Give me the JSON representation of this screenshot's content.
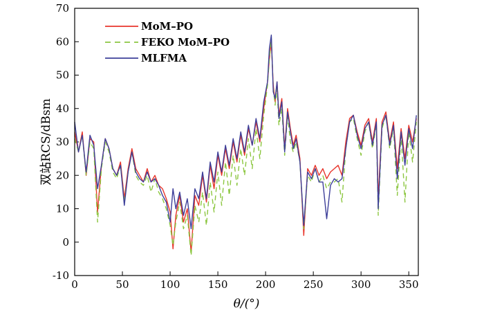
{
  "chart_data": {
    "type": "line",
    "title": "",
    "xlabel": "θ/(°)",
    "ylabel": "双站RCS/dBsm",
    "xlim": [
      0,
      360
    ],
    "ylim": [
      -10,
      70
    ],
    "xticks": [
      0,
      50,
      100,
      150,
      200,
      250,
      300,
      350
    ],
    "yticks": [
      -10,
      0,
      10,
      20,
      30,
      40,
      50,
      60,
      70
    ],
    "grid": false,
    "legend_position": "top-left",
    "series": [
      {
        "name": "MoM–PO",
        "color": "#e8352b",
        "dash": "solid",
        "points": [
          [
            0,
            33
          ],
          [
            4,
            27
          ],
          [
            8,
            33
          ],
          [
            12,
            20
          ],
          [
            16,
            31
          ],
          [
            20,
            30
          ],
          [
            24,
            9
          ],
          [
            28,
            23
          ],
          [
            32,
            31
          ],
          [
            36,
            28
          ],
          [
            40,
            22
          ],
          [
            44,
            20
          ],
          [
            48,
            24
          ],
          [
            52,
            13
          ],
          [
            56,
            22
          ],
          [
            60,
            28
          ],
          [
            64,
            22
          ],
          [
            68,
            20
          ],
          [
            72,
            18
          ],
          [
            76,
            22
          ],
          [
            80,
            18
          ],
          [
            84,
            20
          ],
          [
            88,
            17
          ],
          [
            92,
            16
          ],
          [
            96,
            13
          ],
          [
            100,
            9
          ],
          [
            103,
            -2
          ],
          [
            106,
            8
          ],
          [
            110,
            14
          ],
          [
            114,
            6
          ],
          [
            118,
            10
          ],
          [
            122,
            -3
          ],
          [
            126,
            14
          ],
          [
            130,
            11
          ],
          [
            134,
            20
          ],
          [
            138,
            12
          ],
          [
            142,
            23
          ],
          [
            146,
            16
          ],
          [
            150,
            26
          ],
          [
            154,
            20
          ],
          [
            158,
            28
          ],
          [
            162,
            22
          ],
          [
            166,
            30
          ],
          [
            170,
            24
          ],
          [
            174,
            32
          ],
          [
            178,
            26
          ],
          [
            182,
            34
          ],
          [
            186,
            29
          ],
          [
            190,
            36
          ],
          [
            194,
            30
          ],
          [
            198,
            40
          ],
          [
            202,
            48
          ],
          [
            204,
            55
          ],
          [
            206,
            60
          ],
          [
            208,
            47
          ],
          [
            210,
            42
          ],
          [
            212,
            48
          ],
          [
            214,
            38
          ],
          [
            217,
            43
          ],
          [
            220,
            28
          ],
          [
            223,
            40
          ],
          [
            226,
            34
          ],
          [
            229,
            29
          ],
          [
            232,
            32
          ],
          [
            236,
            25
          ],
          [
            240,
            2
          ],
          [
            244,
            22
          ],
          [
            248,
            20
          ],
          [
            252,
            23
          ],
          [
            256,
            20
          ],
          [
            260,
            22
          ],
          [
            264,
            19
          ],
          [
            268,
            21
          ],
          [
            272,
            22
          ],
          [
            276,
            23
          ],
          [
            280,
            20
          ],
          [
            284,
            30
          ],
          [
            288,
            37
          ],
          [
            292,
            38
          ],
          [
            296,
            33
          ],
          [
            300,
            29
          ],
          [
            304,
            35
          ],
          [
            308,
            37
          ],
          [
            312,
            30
          ],
          [
            316,
            37
          ],
          [
            318,
            13
          ],
          [
            322,
            36
          ],
          [
            326,
            39
          ],
          [
            330,
            30
          ],
          [
            334,
            36
          ],
          [
            338,
            22
          ],
          [
            342,
            34
          ],
          [
            346,
            25
          ],
          [
            350,
            35
          ],
          [
            354,
            30
          ],
          [
            358,
            37
          ]
        ]
      },
      {
        "name": "FEKO MoM–PO",
        "color": "#8cc640",
        "dash": "dashed",
        "points": [
          [
            0,
            31
          ],
          [
            4,
            27
          ],
          [
            8,
            32
          ],
          [
            12,
            20
          ],
          [
            16,
            30
          ],
          [
            20,
            28
          ],
          [
            24,
            6
          ],
          [
            28,
            22
          ],
          [
            32,
            30
          ],
          [
            36,
            27
          ],
          [
            40,
            21
          ],
          [
            44,
            19
          ],
          [
            48,
            23
          ],
          [
            52,
            12
          ],
          [
            56,
            21
          ],
          [
            60,
            27
          ],
          [
            64,
            20
          ],
          [
            68,
            18
          ],
          [
            72,
            17
          ],
          [
            76,
            20
          ],
          [
            80,
            15
          ],
          [
            84,
            19
          ],
          [
            88,
            15
          ],
          [
            92,
            13
          ],
          [
            96,
            10
          ],
          [
            100,
            5
          ],
          [
            103,
            -1
          ],
          [
            106,
            6
          ],
          [
            110,
            12
          ],
          [
            114,
            4
          ],
          [
            118,
            8
          ],
          [
            122,
            -4
          ],
          [
            126,
            11
          ],
          [
            130,
            6
          ],
          [
            134,
            15
          ],
          [
            138,
            5
          ],
          [
            142,
            18
          ],
          [
            146,
            9
          ],
          [
            150,
            21
          ],
          [
            154,
            11
          ],
          [
            158,
            24
          ],
          [
            162,
            14
          ],
          [
            166,
            26
          ],
          [
            170,
            17
          ],
          [
            174,
            28
          ],
          [
            178,
            20
          ],
          [
            182,
            31
          ],
          [
            186,
            22
          ],
          [
            190,
            34
          ],
          [
            194,
            25
          ],
          [
            198,
            38
          ],
          [
            202,
            47
          ],
          [
            204,
            55
          ],
          [
            206,
            61
          ],
          [
            208,
            46
          ],
          [
            210,
            41
          ],
          [
            212,
            46
          ],
          [
            214,
            35
          ],
          [
            217,
            40
          ],
          [
            220,
            26
          ],
          [
            223,
            38
          ],
          [
            226,
            30
          ],
          [
            229,
            27
          ],
          [
            232,
            30
          ],
          [
            236,
            24
          ],
          [
            240,
            4
          ],
          [
            244,
            20
          ],
          [
            248,
            18
          ],
          [
            252,
            22
          ],
          [
            256,
            18
          ],
          [
            260,
            20
          ],
          [
            264,
            16
          ],
          [
            268,
            18
          ],
          [
            272,
            18
          ],
          [
            276,
            19
          ],
          [
            280,
            12
          ],
          [
            284,
            28
          ],
          [
            288,
            36
          ],
          [
            292,
            37
          ],
          [
            296,
            31
          ],
          [
            300,
            26
          ],
          [
            304,
            33
          ],
          [
            308,
            36
          ],
          [
            312,
            28
          ],
          [
            316,
            35
          ],
          [
            318,
            8
          ],
          [
            322,
            34
          ],
          [
            326,
            38
          ],
          [
            330,
            28
          ],
          [
            334,
            34
          ],
          [
            338,
            14
          ],
          [
            342,
            32
          ],
          [
            346,
            12
          ],
          [
            350,
            33
          ],
          [
            354,
            24
          ],
          [
            358,
            36
          ]
        ]
      },
      {
        "name": "MLFMA",
        "color": "#3d3f99",
        "dash": "solid",
        "points": [
          [
            0,
            36
          ],
          [
            4,
            27
          ],
          [
            8,
            32
          ],
          [
            12,
            21
          ],
          [
            16,
            32
          ],
          [
            20,
            29
          ],
          [
            24,
            16
          ],
          [
            28,
            23
          ],
          [
            32,
            31
          ],
          [
            36,
            28
          ],
          [
            40,
            22
          ],
          [
            44,
            20
          ],
          [
            48,
            23
          ],
          [
            52,
            11
          ],
          [
            56,
            21
          ],
          [
            60,
            27
          ],
          [
            64,
            21
          ],
          [
            68,
            19
          ],
          [
            72,
            18
          ],
          [
            76,
            21
          ],
          [
            80,
            18
          ],
          [
            84,
            19
          ],
          [
            88,
            17
          ],
          [
            92,
            14
          ],
          [
            96,
            12
          ],
          [
            100,
            6
          ],
          [
            103,
            16
          ],
          [
            106,
            10
          ],
          [
            110,
            15
          ],
          [
            114,
            8
          ],
          [
            118,
            13
          ],
          [
            122,
            4
          ],
          [
            126,
            16
          ],
          [
            130,
            13
          ],
          [
            134,
            21
          ],
          [
            138,
            13
          ],
          [
            142,
            24
          ],
          [
            146,
            18
          ],
          [
            150,
            27
          ],
          [
            154,
            21
          ],
          [
            158,
            29
          ],
          [
            162,
            23
          ],
          [
            166,
            31
          ],
          [
            170,
            25
          ],
          [
            174,
            33
          ],
          [
            178,
            27
          ],
          [
            182,
            35
          ],
          [
            186,
            29
          ],
          [
            190,
            37
          ],
          [
            194,
            31
          ],
          [
            198,
            42
          ],
          [
            202,
            48
          ],
          [
            204,
            58
          ],
          [
            206,
            62
          ],
          [
            208,
            45
          ],
          [
            210,
            43
          ],
          [
            212,
            48
          ],
          [
            214,
            37
          ],
          [
            217,
            42
          ],
          [
            220,
            27
          ],
          [
            223,
            39
          ],
          [
            226,
            33
          ],
          [
            229,
            28
          ],
          [
            232,
            31
          ],
          [
            236,
            24
          ],
          [
            240,
            5
          ],
          [
            244,
            21
          ],
          [
            248,
            19
          ],
          [
            252,
            22
          ],
          [
            256,
            18
          ],
          [
            260,
            18
          ],
          [
            264,
            7
          ],
          [
            268,
            17
          ],
          [
            272,
            19
          ],
          [
            276,
            18
          ],
          [
            280,
            19
          ],
          [
            284,
            28
          ],
          [
            288,
            36
          ],
          [
            292,
            38
          ],
          [
            296,
            32
          ],
          [
            300,
            28
          ],
          [
            304,
            34
          ],
          [
            308,
            36
          ],
          [
            312,
            29
          ],
          [
            316,
            36
          ],
          [
            318,
            10
          ],
          [
            322,
            35
          ],
          [
            326,
            38
          ],
          [
            330,
            29
          ],
          [
            334,
            35
          ],
          [
            338,
            19
          ],
          [
            342,
            33
          ],
          [
            346,
            23
          ],
          [
            350,
            34
          ],
          [
            354,
            28
          ],
          [
            358,
            38
          ]
        ]
      }
    ]
  }
}
